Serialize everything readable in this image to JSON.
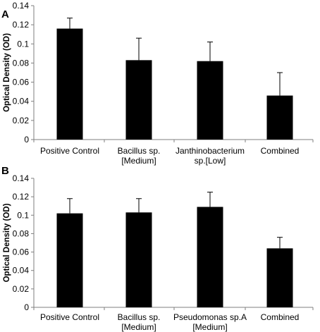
{
  "chart_data": [
    {
      "panel_label": "A",
      "type": "bar",
      "ylabel": "Optical Density (OD)",
      "ylim": [
        0,
        0.14
      ],
      "yticks": [
        "0",
        "0.02",
        "0.04",
        "0.06",
        "0.08",
        "0.1",
        "0.12",
        "0.14"
      ],
      "categories": [
        [
          "Positive Control"
        ],
        [
          "Bacillus sp.",
          "[Medium]"
        ],
        [
          "Janthinobacterium",
          "sp.[Low]"
        ],
        [
          "Combined"
        ]
      ],
      "values": [
        0.116,
        0.083,
        0.082,
        0.046
      ],
      "errors": [
        0.011,
        0.023,
        0.02,
        0.024
      ],
      "bar_color": "#000000",
      "grid": false
    },
    {
      "panel_label": "B",
      "type": "bar",
      "ylabel": "Optical Density (OD)",
      "ylim": [
        0,
        0.14
      ],
      "yticks": [
        "0",
        "0.02",
        "0.04",
        "0.06",
        "0.08",
        "0.1",
        "0.12",
        "0.14"
      ],
      "categories": [
        [
          "Positive Control"
        ],
        [
          "Bacillus sp.",
          "[Medium]"
        ],
        [
          "Pseudomonas sp.A",
          "[Medium]"
        ],
        [
          "Combined"
        ]
      ],
      "values": [
        0.102,
        0.103,
        0.109,
        0.064
      ],
      "errors": [
        0.016,
        0.015,
        0.016,
        0.012
      ],
      "bar_color": "#000000",
      "grid": false
    }
  ]
}
